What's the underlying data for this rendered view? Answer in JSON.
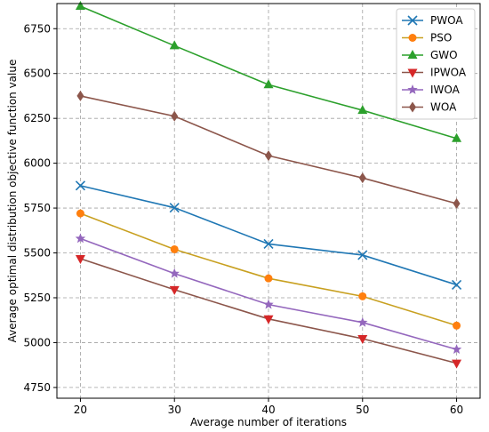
{
  "chart_data": {
    "type": "line",
    "title": "",
    "xlabel": "Average number of iterations",
    "ylabel": "Average optimal distribution objective function value",
    "x": [
      20,
      30,
      40,
      50,
      60
    ],
    "xticks": [
      "20",
      "30",
      "40",
      "50",
      "60"
    ],
    "yticks": [
      "4750",
      "5000",
      "5250",
      "5500",
      "5750",
      "6000",
      "6250",
      "6500",
      "6750"
    ],
    "xlim": [
      17.5,
      62.5
    ],
    "ylim": [
      4690,
      6890
    ],
    "grid": true,
    "legend_position": "top-right",
    "series": [
      {
        "name": "PWOA",
        "color": "#1f77b4",
        "marker": "x",
        "values": [
          5875,
          5752,
          5550,
          5488,
          5322
        ]
      },
      {
        "name": "PSO",
        "color": "#ff7f0e",
        "marker": "circle",
        "line_color": "#c8a020",
        "values": [
          5720,
          5520,
          5358,
          5258,
          5095
        ]
      },
      {
        "name": "GWO",
        "color": "#2ca02c",
        "marker": "triangle-up",
        "values": [
          6875,
          6655,
          6438,
          6295,
          6138
        ]
      },
      {
        "name": "IPWOA",
        "color": "#d62728",
        "marker": "triangle-down",
        "line_color": "#8c564b",
        "values": [
          5468,
          5295,
          5132,
          5022,
          4885
        ]
      },
      {
        "name": "IWOA",
        "color": "#9467bd",
        "marker": "star",
        "line_color": "#9467bd",
        "values": [
          5580,
          5385,
          5212,
          5112,
          4962
        ]
      },
      {
        "name": "WOA",
        "color": "#8c564b",
        "marker": "diamond",
        "values": [
          6375,
          6262,
          6042,
          5918,
          5775
        ]
      }
    ]
  }
}
